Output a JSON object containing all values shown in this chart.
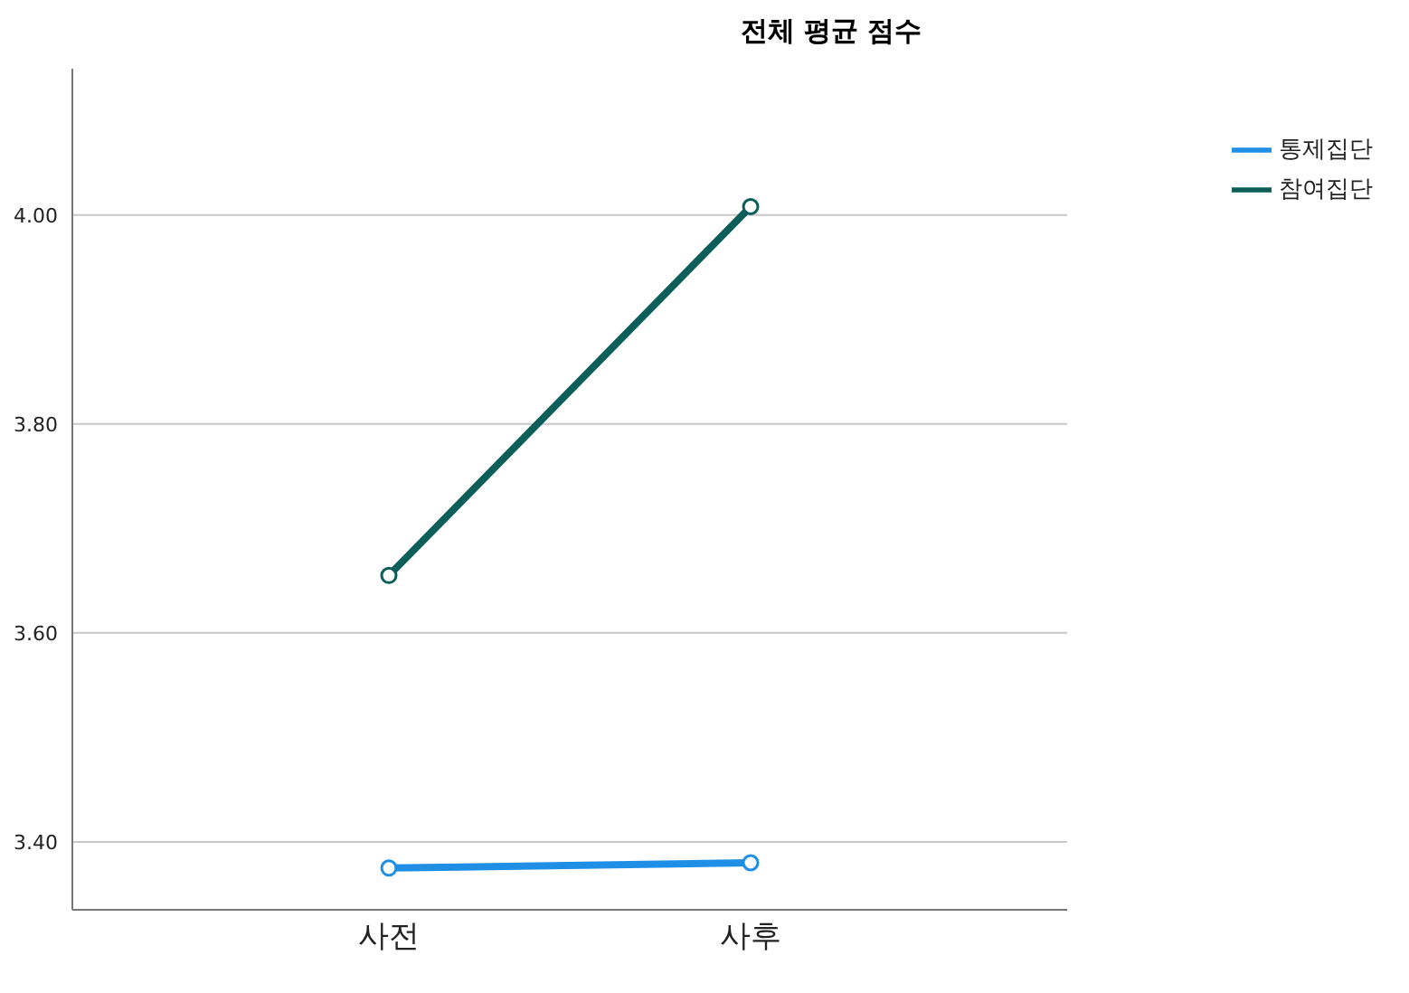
{
  "chart_data": {
    "type": "line",
    "title": "전체 평균 점수",
    "categories": [
      "사전",
      "사후"
    ],
    "series": [
      {
        "name": "통제집단",
        "color": "#1f8fe5",
        "values": [
          3.375,
          3.38
        ]
      },
      {
        "name": "참여집단",
        "color": "#0b5e5a",
        "values": [
          3.655,
          4.008
        ]
      }
    ],
    "ylim": [
      3.335,
      4.14
    ],
    "yticks": [
      {
        "value": 3.4,
        "label": "3.40"
      },
      {
        "value": 3.6,
        "label": "3.60"
      },
      {
        "value": 3.8,
        "label": "3.80"
      },
      {
        "value": 4.0,
        "label": "4.00"
      }
    ],
    "grid": "y",
    "legend": "top right",
    "marker": "circle",
    "line_style": "solid"
  }
}
